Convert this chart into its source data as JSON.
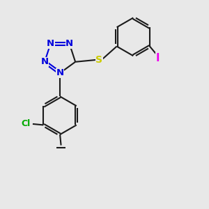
{
  "bg_color": "#e8e8e8",
  "bond_color": "#1a1a1a",
  "n_color": "#0000dd",
  "s_color": "#cccc00",
  "cl_color": "#00aa00",
  "i_color": "#ee00ee",
  "lw": 1.5,
  "fs": 9.5,
  "xlim": [
    0,
    10
  ],
  "ylim": [
    0,
    10
  ]
}
